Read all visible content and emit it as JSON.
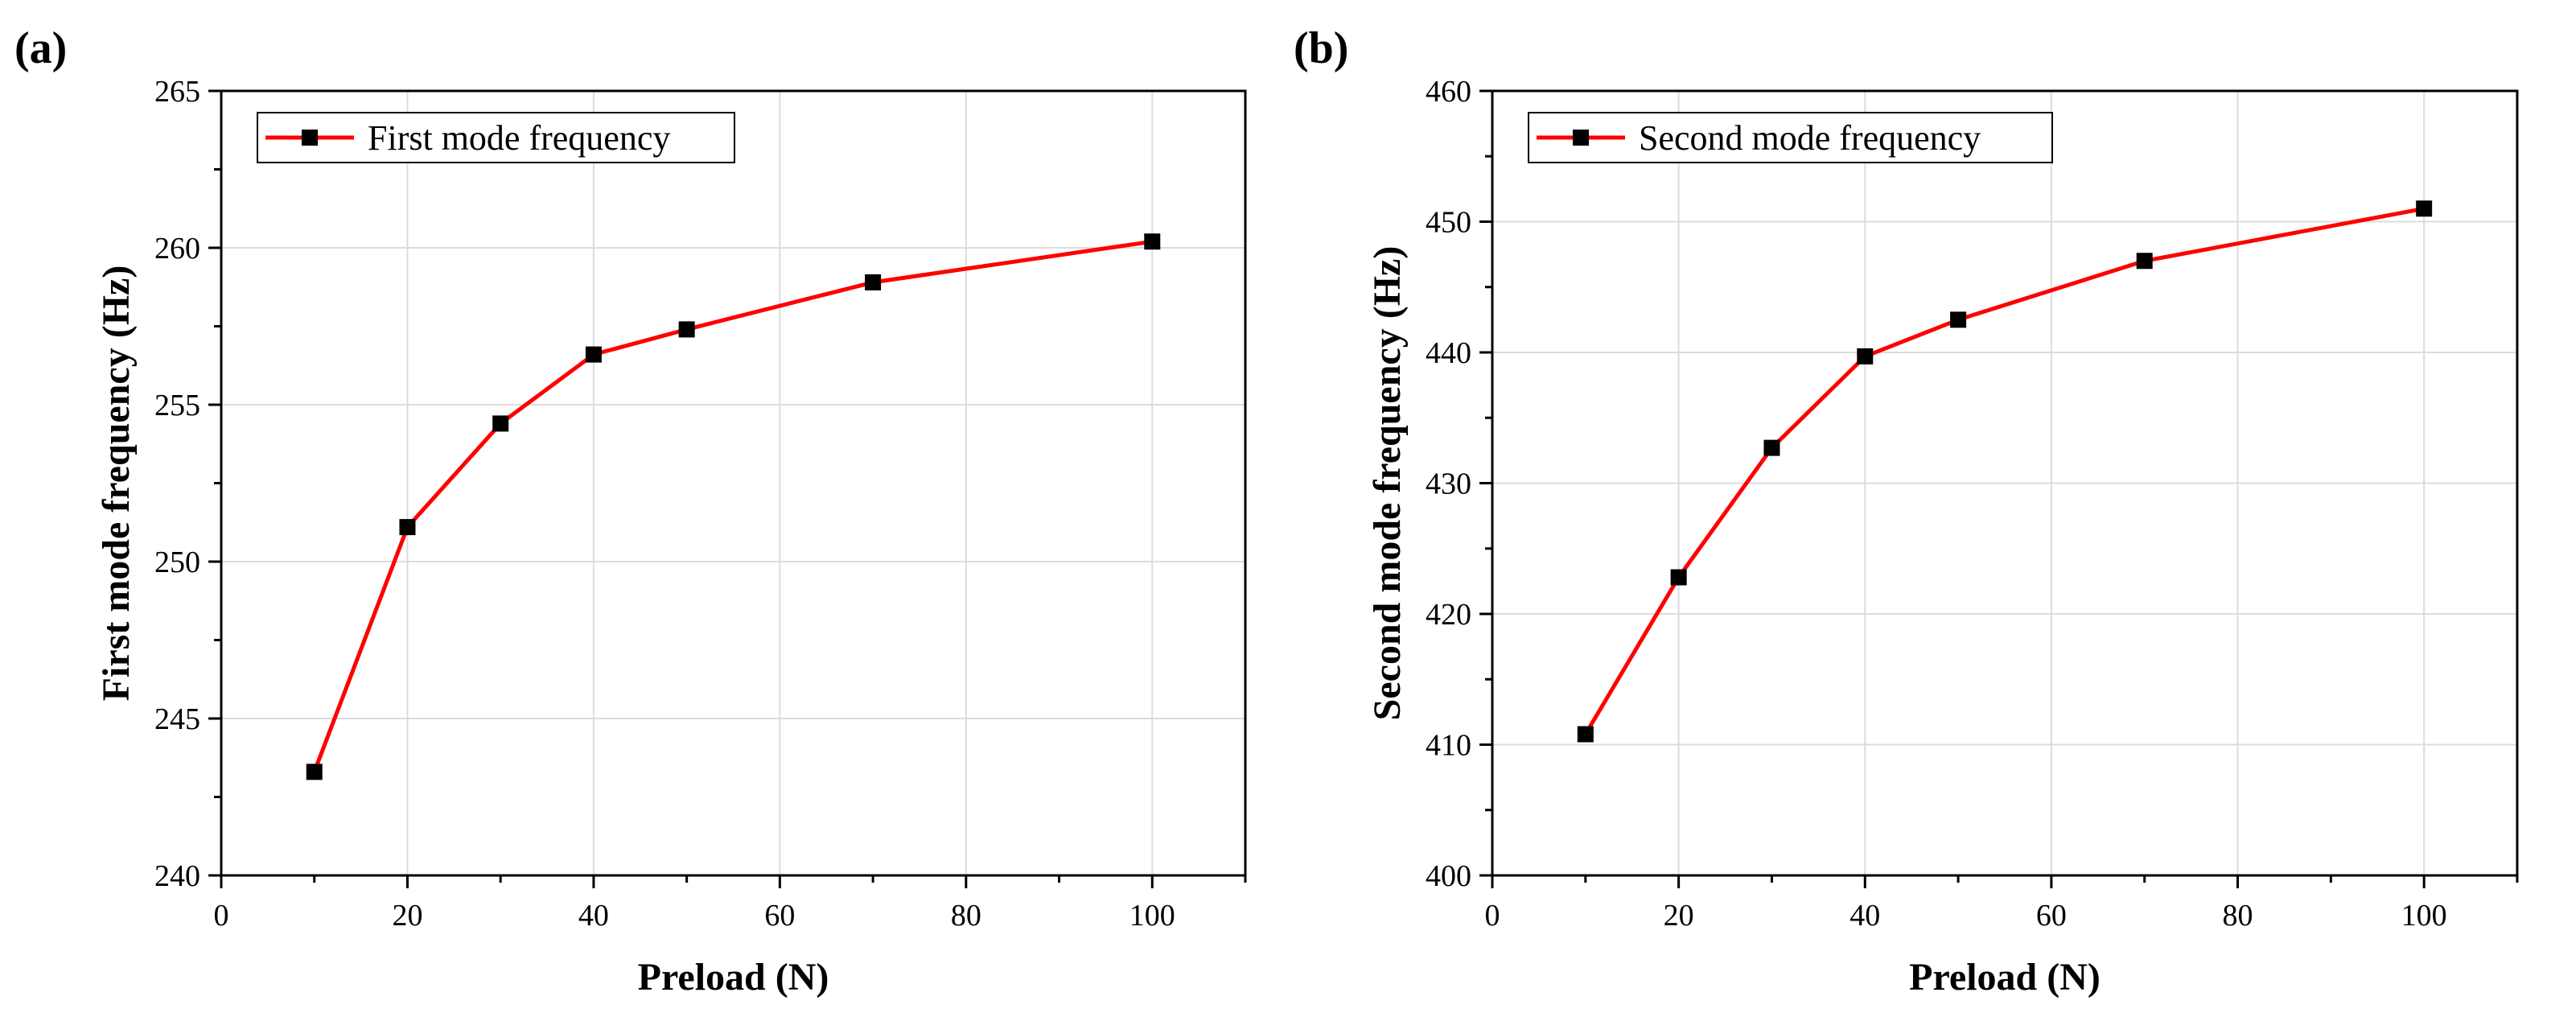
{
  "colors": {
    "line": "#ff0000",
    "marker": "#000000",
    "grid": "#dcdcdc",
    "axis": "#000000",
    "background": "#ffffff"
  },
  "chart_data": [
    {
      "panel_label": "(a)",
      "type": "line",
      "xlabel": "Preload (N)",
      "ylabel": "First mode frequency (Hz)",
      "xlim": [
        0,
        110
      ],
      "ylim": [
        240,
        265
      ],
      "xticks": [
        0,
        20,
        40,
        60,
        80,
        100
      ],
      "yticks": [
        240,
        245,
        250,
        255,
        260,
        265
      ],
      "x_minor_step": 10,
      "y_minor_step": 2.5,
      "grid": true,
      "legend_position": "top-left",
      "marker": "square",
      "series": [
        {
          "name": "First mode frequency",
          "x": [
            10,
            20,
            30,
            40,
            50,
            70,
            100
          ],
          "y": [
            243.3,
            251.1,
            254.4,
            256.6,
            257.4,
            258.9,
            260.2
          ]
        }
      ]
    },
    {
      "panel_label": "(b)",
      "type": "line",
      "xlabel": "Preload (N)",
      "ylabel": "Second mode frequency (Hz)",
      "xlim": [
        0,
        110
      ],
      "ylim": [
        400,
        460
      ],
      "xticks": [
        0,
        20,
        40,
        60,
        80,
        100
      ],
      "yticks": [
        400,
        410,
        420,
        430,
        440,
        450,
        460
      ],
      "x_minor_step": 10,
      "y_minor_step": 5,
      "grid": true,
      "legend_position": "top-left",
      "marker": "square",
      "series": [
        {
          "name": "Second mode frequency",
          "x": [
            10,
            20,
            30,
            40,
            50,
            70,
            100
          ],
          "y": [
            410.8,
            422.8,
            432.7,
            439.7,
            442.5,
            447.0,
            451.0
          ]
        }
      ]
    }
  ]
}
